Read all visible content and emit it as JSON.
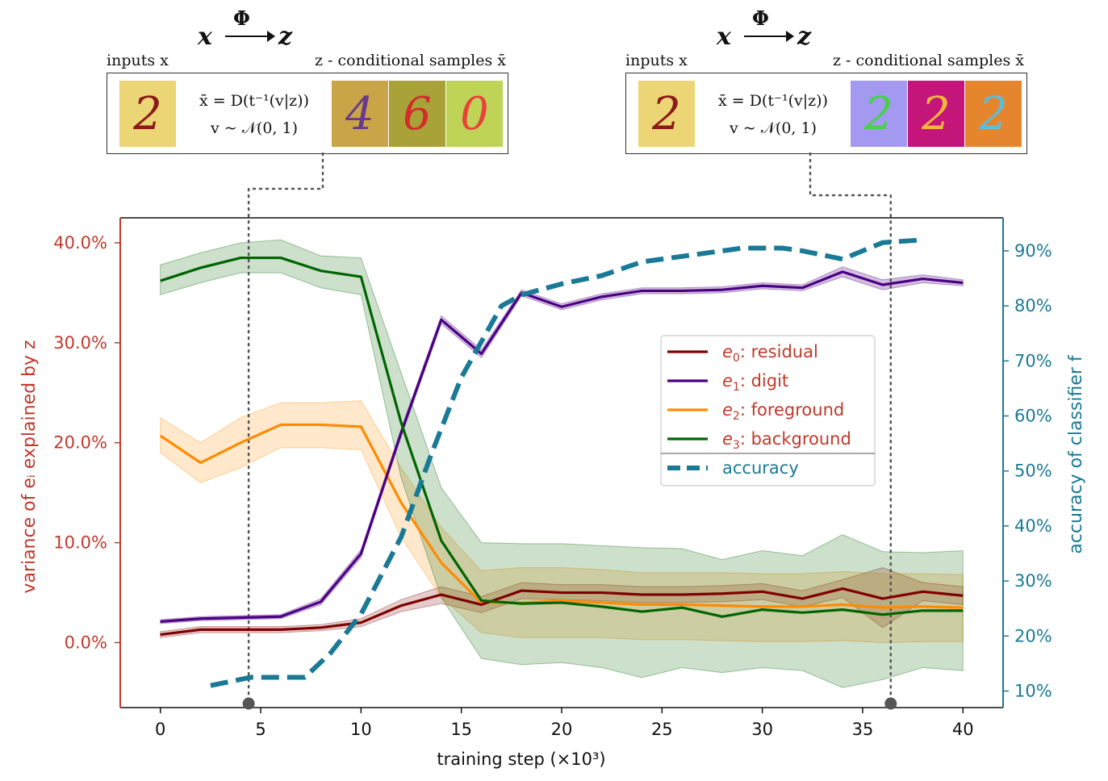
{
  "colors": {
    "residual": "#7f0000",
    "digit": "#4b0082",
    "foreground": "#ff8c00",
    "background": "#006400",
    "accuracy": "#1a7a96",
    "left_axis": "#c0392b",
    "right_axis": "#1a7a96",
    "legend_label": "#c0392b"
  },
  "panels": [
    {
      "mapping_left": "x",
      "mapping_symbol": "Φ",
      "mapping_right": "z",
      "inputs_caption": "inputs x",
      "samples_caption": "z - conditional samples x̄",
      "equation_line1": "x̄ = D(t⁻¹(v|z))",
      "equation_line2": "v ~ 𝒩(0, 1)",
      "input_tile": {
        "glyph": "2",
        "bg": "#ecd574",
        "fg": "#8b1a1a"
      },
      "sample_tiles": [
        {
          "glyph": "4",
          "bg": "#c9a547",
          "fg": "#6a3a8a"
        },
        {
          "glyph": "6",
          "bg": "#a8a239",
          "fg": "#d42b2b"
        },
        {
          "glyph": "0",
          "bg": "#bfd357",
          "fg": "#e8433a"
        }
      ]
    },
    {
      "mapping_left": "x",
      "mapping_symbol": "Φ",
      "mapping_right": "z",
      "inputs_caption": "inputs x",
      "samples_caption": "z - conditional samples x̄",
      "equation_line1": "x̄ = D(t⁻¹(v|z))",
      "equation_line2": "v ~ 𝒩(0, 1)",
      "input_tile": {
        "glyph": "2",
        "bg": "#ecd574",
        "fg": "#8b1a1a"
      },
      "sample_tiles": [
        {
          "glyph": "2",
          "bg": "#a499f0",
          "fg": "#46d14a"
        },
        {
          "glyph": "2",
          "bg": "#c4157a",
          "fg": "#f2b43a"
        },
        {
          "glyph": "2",
          "bg": "#e5862e",
          "fg": "#5fbcd8"
        }
      ]
    }
  ],
  "chart_data": {
    "type": "line",
    "xlabel": "training step (×10³)",
    "ylabel_left": "variance of eᵢ explained by z",
    "ylabel_right": "accuracy of classifier f",
    "xlim": [
      -2,
      42
    ],
    "xticks": [
      0,
      5,
      10,
      15,
      20,
      25,
      30,
      35,
      40
    ],
    "ylim_left": [
      -6.5,
      42.5
    ],
    "yticks_left": [
      0,
      10,
      20,
      30,
      40
    ],
    "yticks_left_labels": [
      "0.0%",
      "10.0%",
      "20.0%",
      "30.0%",
      "40.0%"
    ],
    "ylim_right": [
      7,
      96
    ],
    "yticks_right": [
      10,
      20,
      30,
      40,
      50,
      60,
      70,
      80,
      90
    ],
    "yticks_right_labels": [
      "10%",
      "20%",
      "30%",
      "40%",
      "50%",
      "60%",
      "70%",
      "80%",
      "90%"
    ],
    "legend_position": "center-right",
    "legend": [
      {
        "key": "residual",
        "sym": "e",
        "sub": "0",
        "text": ": residual"
      },
      {
        "key": "digit",
        "sym": "e",
        "sub": "1",
        "text": ": digit"
      },
      {
        "key": "foreground",
        "sym": "e",
        "sub": "2",
        "text": ": foreground"
      },
      {
        "key": "background",
        "sym": "e",
        "sub": "3",
        "text": ": background"
      },
      {
        "key": "accuracy",
        "sym": "",
        "sub": "",
        "text": "accuracy"
      }
    ],
    "x": [
      0,
      2,
      4,
      6,
      8,
      10,
      12,
      14,
      16,
      18,
      20,
      22,
      24,
      26,
      28,
      30,
      32,
      34,
      36,
      38,
      40
    ],
    "series": [
      {
        "key": "residual",
        "axis": "left",
        "values": [
          0.8,
          1.3,
          1.3,
          1.3,
          1.5,
          2.0,
          3.7,
          4.8,
          3.8,
          5.2,
          5.0,
          5.0,
          4.8,
          4.8,
          4.9,
          5.1,
          4.4,
          5.4,
          4.4,
          5.1,
          4.7
        ],
        "lower": [
          0.5,
          1.0,
          1.0,
          1.0,
          1.2,
          1.6,
          3.1,
          3.9,
          3.0,
          4.4,
          4.3,
          4.2,
          4.0,
          4.0,
          4.1,
          4.3,
          3.6,
          4.5,
          1.5,
          4.2,
          3.8
        ],
        "upper": [
          1.1,
          1.6,
          1.6,
          1.6,
          1.8,
          2.4,
          4.3,
          5.6,
          4.6,
          6.0,
          5.8,
          5.8,
          5.6,
          5.6,
          5.7,
          5.9,
          5.2,
          6.3,
          7.5,
          6.0,
          5.6
        ]
      },
      {
        "key": "digit",
        "axis": "left",
        "values": [
          2.1,
          2.4,
          2.5,
          2.6,
          4.1,
          8.9,
          21.0,
          32.3,
          28.9,
          35.0,
          33.6,
          34.6,
          35.2,
          35.2,
          35.3,
          35.7,
          35.5,
          37.1,
          35.8,
          36.4,
          36.0
        ],
        "lower": [
          1.9,
          2.2,
          2.3,
          2.4,
          3.8,
          8.5,
          20.6,
          31.9,
          28.5,
          34.7,
          33.3,
          34.3,
          34.9,
          34.9,
          35.0,
          35.4,
          35.2,
          36.6,
          35.3,
          36.0,
          35.7
        ],
        "upper": [
          2.3,
          2.6,
          2.7,
          2.8,
          4.4,
          9.3,
          21.4,
          32.7,
          29.3,
          35.3,
          33.9,
          34.9,
          35.5,
          35.5,
          35.6,
          36.0,
          35.8,
          37.6,
          36.3,
          36.8,
          36.3
        ]
      },
      {
        "key": "foreground",
        "axis": "left",
        "values": [
          20.7,
          18.0,
          20.0,
          21.8,
          21.8,
          21.6,
          14.0,
          8.0,
          4.0,
          4.0,
          4.2,
          4.0,
          3.8,
          3.8,
          3.7,
          3.6,
          3.6,
          3.8,
          3.5,
          3.6,
          3.5
        ],
        "lower": [
          19.0,
          16.0,
          17.5,
          19.5,
          19.5,
          19.3,
          10.5,
          4.5,
          1.0,
          0.5,
          0.5,
          0.5,
          0.3,
          0.3,
          0.2,
          0.1,
          0.1,
          0.2,
          0.0,
          0.1,
          0.1
        ],
        "upper": [
          22.5,
          20.0,
          22.5,
          24.0,
          24.0,
          24.2,
          17.5,
          11.5,
          7.2,
          7.5,
          7.5,
          7.3,
          7.0,
          7.0,
          7.0,
          6.9,
          6.9,
          7.1,
          6.9,
          6.9,
          6.8
        ]
      },
      {
        "key": "background",
        "axis": "left",
        "values": [
          36.2,
          37.5,
          38.5,
          38.5,
          37.2,
          36.6,
          22.0,
          10.2,
          4.2,
          3.9,
          4.0,
          3.6,
          3.1,
          3.5,
          2.6,
          3.3,
          3.0,
          3.3,
          2.8,
          3.2,
          3.2
        ],
        "lower": [
          34.8,
          36.0,
          37.0,
          37.0,
          35.5,
          34.8,
          16.5,
          4.5,
          -1.6,
          -2.2,
          -2.0,
          -2.5,
          -3.5,
          -2.5,
          -3.0,
          -2.5,
          -2.8,
          -4.5,
          -3.7,
          -2.5,
          -2.8
        ],
        "upper": [
          37.8,
          39.0,
          40.0,
          40.3,
          38.7,
          38.5,
          27.0,
          15.5,
          10.0,
          9.9,
          9.9,
          9.7,
          9.5,
          9.4,
          8.3,
          9.2,
          8.7,
          10.8,
          9.1,
          9.0,
          9.2
        ]
      },
      {
        "key": "accuracy",
        "axis": "right",
        "dashed": true,
        "x": [
          2.5,
          4.5,
          5.5,
          7.2,
          8.5,
          10,
          12,
          13.5,
          15,
          17,
          18,
          20,
          22,
          24,
          26,
          28,
          29,
          31,
          32,
          34,
          36,
          38
        ],
        "values": [
          11,
          12.5,
          12.5,
          12.5,
          17,
          24,
          38,
          53,
          67,
          80,
          82,
          84,
          85.5,
          88,
          89,
          90,
          90.5,
          90.5,
          90,
          88.5,
          91.5,
          92
        ]
      }
    ],
    "markers": [
      {
        "x": 4.4,
        "panel": 0
      },
      {
        "x": 36.4,
        "panel": 1
      }
    ]
  }
}
